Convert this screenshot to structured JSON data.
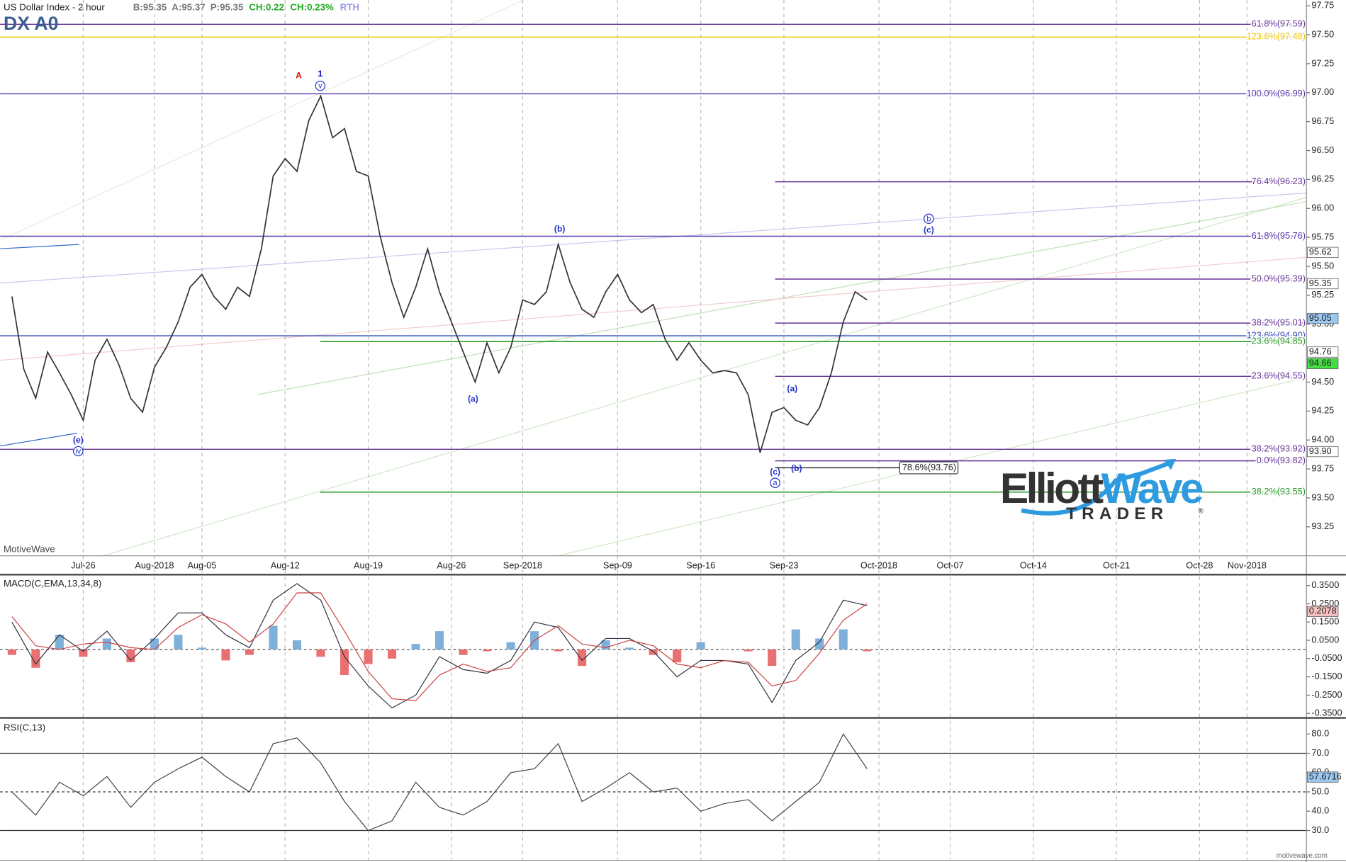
{
  "chart_data": [
    {
      "type": "line",
      "title": "US Dollar Index - 2 hour",
      "subtitle": "DX A0",
      "watermark": "MotiveWave",
      "quote": [
        {
          "text": "B:95.35",
          "color": "#777777"
        },
        {
          "text": "A:95.37",
          "color": "#777777"
        },
        {
          "text": "P:95.35",
          "color": "#777777"
        },
        {
          "text": "CH:0.22",
          "color": "#22aa22"
        },
        {
          "text": "CH:0.23%",
          "color": "#22aa22"
        },
        {
          "text": "RTH",
          "color": "#9999ee"
        }
      ],
      "x": [
        "2018-07-20",
        "2018-07-21",
        "2018-07-22",
        "2018-07-23",
        "2018-07-24",
        "2018-07-25",
        "2018-07-26",
        "2018-07-27",
        "2018-07-28",
        "2018-07-29",
        "2018-07-30",
        "2018-07-31",
        "2018-08-01",
        "2018-08-02",
        "2018-08-03",
        "2018-08-04",
        "2018-08-05",
        "2018-08-06",
        "2018-08-07",
        "2018-08-08",
        "2018-08-09",
        "2018-08-10",
        "2018-08-11",
        "2018-08-12",
        "2018-08-13",
        "2018-08-14",
        "2018-08-15",
        "2018-08-16",
        "2018-08-17",
        "2018-08-18",
        "2018-08-19",
        "2018-08-20",
        "2018-08-21",
        "2018-08-22",
        "2018-08-23",
        "2018-08-24",
        "2018-08-25",
        "2018-08-26",
        "2018-08-27",
        "2018-08-28",
        "2018-08-29",
        "2018-08-30",
        "2018-08-31",
        "2018-09-01",
        "2018-09-02",
        "2018-09-03",
        "2018-09-04",
        "2018-09-05",
        "2018-09-06",
        "2018-09-07",
        "2018-09-08",
        "2018-09-09",
        "2018-09-10",
        "2018-09-11",
        "2018-09-12",
        "2018-09-13",
        "2018-09-14",
        "2018-09-15",
        "2018-09-16",
        "2018-09-17",
        "2018-09-18",
        "2018-09-19",
        "2018-09-20",
        "2018-09-21",
        "2018-09-22",
        "2018-09-23",
        "2018-09-24",
        "2018-09-25",
        "2018-09-26",
        "2018-09-27",
        "2018-09-28",
        "2018-09-29",
        "2018-09-30"
      ],
      "series": [
        {
          "name": "DX A0",
          "color": "#333333",
          "values": [
            95.24,
            94.61,
            94.36,
            94.76,
            94.58,
            94.39,
            94.17,
            94.69,
            94.87,
            94.65,
            94.36,
            94.24,
            94.63,
            94.8,
            95.02,
            95.32,
            95.43,
            95.24,
            95.13,
            95.32,
            95.24,
            95.65,
            96.28,
            96.43,
            96.32,
            96.76,
            96.97,
            96.61,
            96.69,
            96.32,
            96.28,
            95.76,
            95.36,
            95.06,
            95.32,
            95.65,
            95.28,
            95.02,
            94.76,
            94.5,
            94.84,
            94.58,
            94.8,
            95.21,
            95.17,
            95.28,
            95.69,
            95.36,
            95.13,
            95.06,
            95.28,
            95.43,
            95.21,
            95.1,
            95.17,
            94.87,
            94.69,
            94.84,
            94.69,
            94.58,
            94.6,
            94.58,
            94.39,
            93.89,
            94.24,
            94.28,
            94.17,
            94.13,
            94.28,
            94.58,
            95.02,
            95.28,
            95.21
          ]
        }
      ],
      "xlim": [
        "2018-07-19",
        "2018-11-06"
      ],
      "xticks": [
        {
          "value": "2018-07-26",
          "label": "Jul-26"
        },
        {
          "value": "2018-08-01",
          "label": "Aug-2018"
        },
        {
          "value": "2018-08-05",
          "label": "Aug-05"
        },
        {
          "value": "2018-08-12",
          "label": "Aug-12"
        },
        {
          "value": "2018-08-19",
          "label": "Aug-19"
        },
        {
          "value": "2018-08-26",
          "label": "Aug-26"
        },
        {
          "value": "2018-09-01",
          "label": "Sep-2018"
        },
        {
          "value": "2018-09-09",
          "label": "Sep-09"
        },
        {
          "value": "2018-09-16",
          "label": "Sep-16"
        },
        {
          "value": "2018-09-23",
          "label": "Sep-23"
        },
        {
          "value": "2018-10-01",
          "label": "Oct-2018"
        },
        {
          "value": "2018-10-07",
          "label": "Oct-07"
        },
        {
          "value": "2018-10-14",
          "label": "Oct-14"
        },
        {
          "value": "2018-10-21",
          "label": "Oct-21"
        },
        {
          "value": "2018-10-28",
          "label": "Oct-28"
        },
        {
          "value": "2018-11-01",
          "label": "Nov-2018"
        }
      ],
      "ylim": [
        93.0,
        97.8
      ],
      "yticks": [
        {
          "value": 93.25,
          "label": "93.25"
        },
        {
          "value": 93.5,
          "label": "93.50"
        },
        {
          "value": 93.75,
          "label": "93.75"
        },
        {
          "value": 94.0,
          "label": "94.00"
        },
        {
          "value": 94.25,
          "label": "94.25"
        },
        {
          "value": 94.5,
          "label": "94.50"
        },
        {
          "value": 94.75,
          "label": "94.75"
        },
        {
          "value": 95.0,
          "label": "95.00"
        },
        {
          "value": 95.25,
          "label": "95.25"
        },
        {
          "value": 95.5,
          "label": "95.50"
        },
        {
          "value": 95.75,
          "label": "95.75"
        },
        {
          "value": 96.0,
          "label": "96.00"
        },
        {
          "value": 96.25,
          "label": "96.25"
        },
        {
          "value": 96.5,
          "label": "96.50"
        },
        {
          "value": 96.75,
          "label": "96.75"
        },
        {
          "value": 97.0,
          "label": "97.00"
        },
        {
          "value": 97.25,
          "label": "97.25"
        },
        {
          "value": 97.5,
          "label": "97.50"
        },
        {
          "value": 97.75,
          "label": "97.75"
        }
      ],
      "levels": [
        {
          "value": 97.59,
          "label": "61.8%(97.59)",
          "color": "#663399"
        },
        {
          "value": 97.48,
          "label": "123.6%(97.48)",
          "color": "#f2c200"
        },
        {
          "value": 96.99,
          "label": "100.0%(96.99)",
          "color": "#5533aa"
        },
        {
          "value": 96.23,
          "label": "76.4%(96.23)",
          "color": "#663399"
        },
        {
          "value": 95.76,
          "label": "61.8%(95.76)",
          "color": "#5533aa"
        },
        {
          "value": 95.39,
          "label": "50.0%(95.39)",
          "color": "#663399"
        },
        {
          "value": 95.01,
          "label": "38.2%(95.01)",
          "color": "#663399"
        },
        {
          "value": 94.9,
          "label": "123.6%(94.90)",
          "color": "#3344bb"
        },
        {
          "value": 94.85,
          "label": "23.6%(94.85)",
          "color": "#229922"
        },
        {
          "value": 94.55,
          "label": "23.6%(94.55)",
          "color": "#663399"
        },
        {
          "value": 93.92,
          "label": "38.2%(93.92)",
          "color": "#663399"
        },
        {
          "value": 93.82,
          "label": "0.0%(93.82)",
          "color": "#663399"
        },
        {
          "value": 93.76,
          "label": "78.6%(93.76)",
          "color": "#222222"
        },
        {
          "value": 93.55,
          "label": "38.2%(93.55)",
          "color": "#229922"
        }
      ],
      "price_tags": [
        {
          "value": 95.62,
          "label": "95.62",
          "color": "#ffffff"
        },
        {
          "value": 95.35,
          "label": "95.35",
          "color": "#ffffff"
        },
        {
          "value": 95.05,
          "label": "95.05",
          "color": "#9cc8f0"
        },
        {
          "value": 94.76,
          "label": "94.76",
          "color": "#ffffff"
        },
        {
          "value": 94.66,
          "label": "94.66",
          "color": "#44dd44"
        },
        {
          "value": 93.9,
          "label": "93.90",
          "color": "#ffffff"
        }
      ],
      "wave_labels": [
        {
          "text": "A",
          "color": "#dd0000",
          "circled": false
        },
        {
          "text": "1",
          "color": "#0000cc",
          "circled": false
        },
        {
          "text": "v",
          "color": "#2233cc",
          "circled": true
        },
        {
          "text": "(b)",
          "color": "#2233cc",
          "circled": false
        },
        {
          "text": "(a)",
          "color": "#2233cc",
          "circled": false
        },
        {
          "text": "(e)",
          "color": "#2233cc",
          "circled": false
        },
        {
          "text": "iv",
          "color": "#2233cc",
          "circled": true
        },
        {
          "text": "(a)",
          "color": "#2233cc",
          "circled": false
        },
        {
          "text": "(c)",
          "color": "#2233cc",
          "circled": false
        },
        {
          "text": "a",
          "color": "#2233cc",
          "circled": true
        },
        {
          "text": "(b)",
          "color": "#2233cc",
          "circled": false
        },
        {
          "text": "b",
          "color": "#2233cc",
          "circled": true
        },
        {
          "text": "(c)",
          "color": "#2233cc",
          "circled": false
        }
      ],
      "logo": {
        "part1": "Elliott",
        "part2": "Wave",
        "part3": "TRADER",
        "mark": "®"
      },
      "footer": "motivewave.com"
    },
    {
      "type": "line",
      "title": "MACD(C,EMA,13,34,8)",
      "x": [
        "2018-07-20",
        "2018-07-22",
        "2018-07-24",
        "2018-07-26",
        "2018-07-28",
        "2018-07-30",
        "2018-08-01",
        "2018-08-03",
        "2018-08-05",
        "2018-08-07",
        "2018-08-09",
        "2018-08-11",
        "2018-08-13",
        "2018-08-15",
        "2018-08-17",
        "2018-08-19",
        "2018-08-21",
        "2018-08-23",
        "2018-08-25",
        "2018-08-27",
        "2018-08-29",
        "2018-08-31",
        "2018-09-02",
        "2018-09-04",
        "2018-09-06",
        "2018-09-08",
        "2018-09-10",
        "2018-09-12",
        "2018-09-14",
        "2018-09-16",
        "2018-09-18",
        "2018-09-20",
        "2018-09-22",
        "2018-09-24",
        "2018-09-26",
        "2018-09-28",
        "2018-09-30"
      ],
      "series": [
        {
          "name": "histogram",
          "type": "bar",
          "color": "#7fb0da",
          "color_down": "#e87070",
          "values": [
            -0.03,
            -0.1,
            0.08,
            -0.04,
            0.06,
            -0.07,
            0.06,
            0.08,
            0.01,
            -0.06,
            -0.03,
            0.13,
            0.05,
            -0.04,
            -0.14,
            -0.08,
            -0.05,
            0.03,
            0.1,
            -0.03,
            -0.01,
            0.04,
            0.1,
            -0.01,
            -0.09,
            0.05,
            0.01,
            -0.03,
            -0.07,
            0.04,
            0.0,
            -0.01,
            -0.09,
            0.11,
            0.06,
            0.11,
            -0.01
          ]
        },
        {
          "name": "macd",
          "type": "line",
          "color": "#333344",
          "values": [
            0.15,
            -0.08,
            0.08,
            -0.01,
            0.1,
            -0.06,
            0.06,
            0.2,
            0.2,
            0.08,
            0.01,
            0.27,
            0.36,
            0.27,
            -0.04,
            -0.2,
            -0.32,
            -0.25,
            -0.04,
            -0.11,
            -0.13,
            -0.06,
            0.15,
            0.12,
            -0.06,
            0.06,
            0.06,
            -0.01,
            -0.15,
            -0.06,
            -0.06,
            -0.08,
            -0.29,
            -0.06,
            0.04,
            0.27,
            0.24
          ]
        },
        {
          "name": "signal",
          "type": "line",
          "color": "#cc4444",
          "values": [
            0.18,
            0.02,
            0.0,
            0.03,
            0.04,
            0.01,
            0.0,
            0.12,
            0.19,
            0.14,
            0.04,
            0.14,
            0.31,
            0.31,
            0.1,
            -0.12,
            -0.27,
            -0.28,
            -0.14,
            -0.08,
            -0.12,
            -0.1,
            0.05,
            0.13,
            0.03,
            0.01,
            0.05,
            0.02,
            -0.08,
            -0.1,
            -0.06,
            -0.07,
            -0.2,
            -0.17,
            -0.02,
            0.16,
            0.25
          ]
        }
      ],
      "xlim": [
        "2018-07-19",
        "2018-11-06"
      ],
      "ylim": [
        -0.37,
        0.4
      ],
      "yticks": [
        {
          "value": -0.35,
          "label": "-0.3500"
        },
        {
          "value": -0.25,
          "label": "-0.2500"
        },
        {
          "value": -0.15,
          "label": "-0.1500"
        },
        {
          "value": -0.05,
          "label": "-0.0500"
        },
        {
          "value": 0.05,
          "label": "0.0500"
        },
        {
          "value": 0.15,
          "label": "0.1500"
        },
        {
          "value": 0.25,
          "label": "0.2500"
        },
        {
          "value": 0.35,
          "label": "0.3500"
        }
      ],
      "hlines": [
        {
          "value": 0,
          "dashed": true
        }
      ],
      "price_tags": [
        {
          "value": 0.2078,
          "label": "0.2078",
          "color": "#f4c0c0"
        }
      ]
    },
    {
      "type": "line",
      "title": "RSI(C,13)",
      "x": [
        "2018-07-20",
        "2018-07-22",
        "2018-07-24",
        "2018-07-26",
        "2018-07-28",
        "2018-07-30",
        "2018-08-01",
        "2018-08-03",
        "2018-08-05",
        "2018-08-07",
        "2018-08-09",
        "2018-08-11",
        "2018-08-13",
        "2018-08-15",
        "2018-08-17",
        "2018-08-19",
        "2018-08-21",
        "2018-08-23",
        "2018-08-25",
        "2018-08-27",
        "2018-08-29",
        "2018-08-31",
        "2018-09-02",
        "2018-09-04",
        "2018-09-06",
        "2018-09-08",
        "2018-09-10",
        "2018-09-12",
        "2018-09-14",
        "2018-09-16",
        "2018-09-18",
        "2018-09-20",
        "2018-09-22",
        "2018-09-24",
        "2018-09-26",
        "2018-09-28",
        "2018-09-30"
      ],
      "series": [
        {
          "name": "RSI",
          "type": "line",
          "color": "#444444",
          "values": [
            50,
            38,
            55,
            48,
            58,
            42,
            55,
            62,
            68,
            58,
            50,
            75,
            78,
            65,
            45,
            30,
            35,
            55,
            42,
            38,
            45,
            60,
            62,
            75,
            45,
            52,
            60,
            50,
            52,
            40,
            44,
            46,
            35,
            45,
            55,
            80,
            62
          ]
        }
      ],
      "xlim": [
        "2018-07-19",
        "2018-11-06"
      ],
      "ylim": [
        15,
        87
      ],
      "yticks": [
        {
          "value": 30,
          "label": "30.0"
        },
        {
          "value": 40,
          "label": "40.0"
        },
        {
          "value": 50,
          "label": "50.0"
        },
        {
          "value": 60,
          "label": "60.0"
        },
        {
          "value": 70,
          "label": "70.0"
        },
        {
          "value": 80,
          "label": "80.0"
        }
      ],
      "hlines": [
        {
          "value": 70,
          "dashed": false
        },
        {
          "value": 50,
          "dashed": true
        },
        {
          "value": 30,
          "dashed": false
        }
      ],
      "price_tags": [
        {
          "value": 57.6716,
          "label": "57.6716",
          "color": "#9cc8f0"
        }
      ]
    }
  ]
}
